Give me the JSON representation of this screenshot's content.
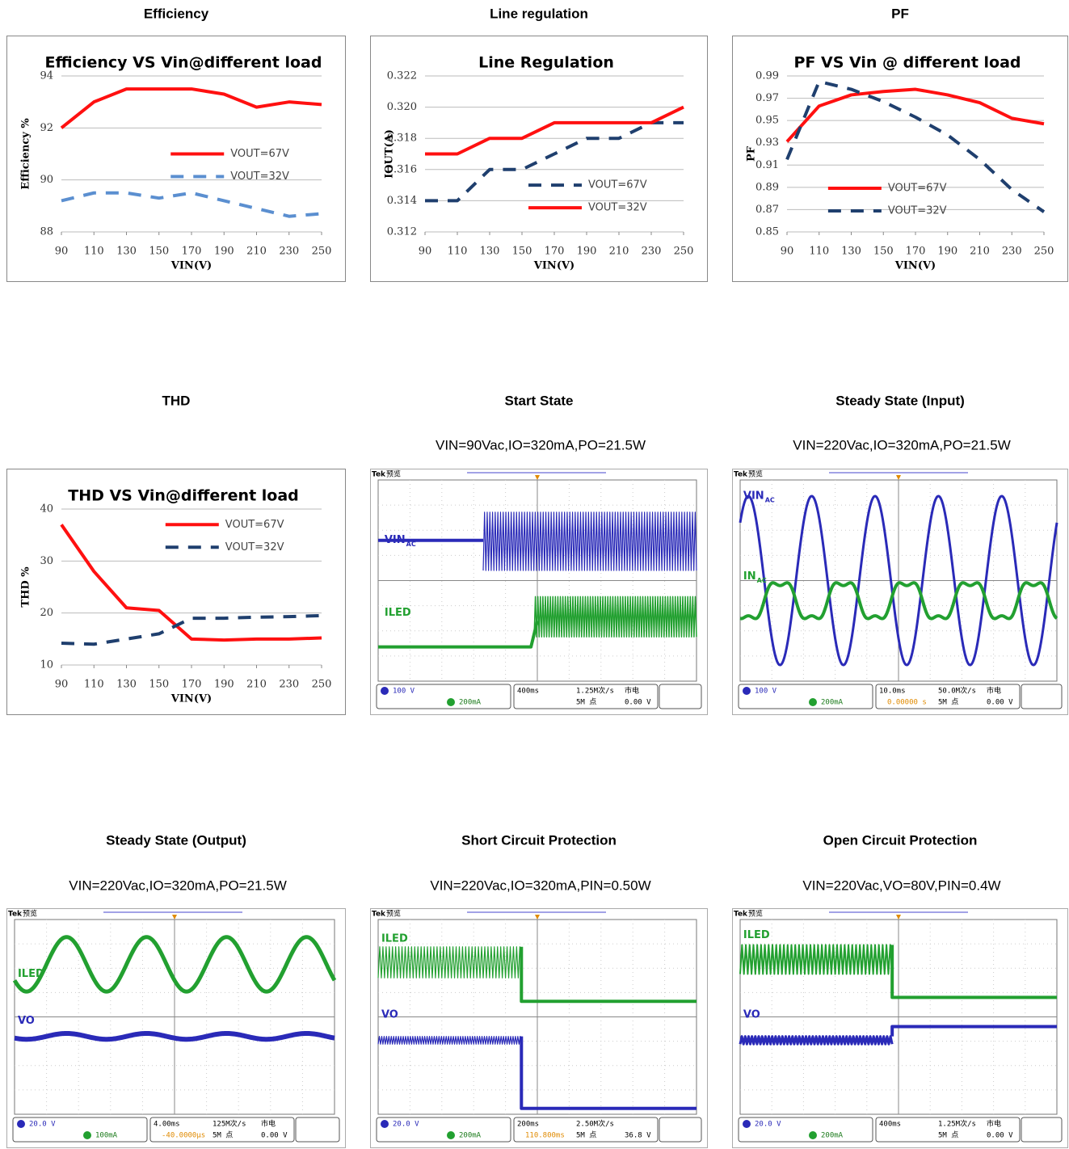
{
  "headings": [
    "Efficiency",
    "Line regulation",
    "PF",
    "THD",
    "Start State",
    "Steady State (Input)",
    "Steady State (Output)",
    "Short Circuit Protection",
    "Open Circuit Protection"
  ],
  "chart_data": [
    {
      "type": "line",
      "title": "Efficiency VS Vin@different load",
      "x_label": "VIN(V)",
      "y_label": "Efficiency %",
      "x": [
        90,
        110,
        130,
        150,
        170,
        190,
        210,
        230,
        250
      ],
      "xlim": [
        90,
        250
      ],
      "xticks": [
        90,
        110,
        130,
        150,
        170,
        190,
        210,
        230,
        250
      ],
      "ylim": [
        88,
        94
      ],
      "yticks": [
        88,
        90,
        92,
        94
      ],
      "grid": true,
      "legend": "right",
      "series": [
        {
          "name": "VOUT=67V",
          "color": "#ff1010",
          "line_style": "solid",
          "values": [
            92,
            93,
            93.5,
            93.5,
            93.5,
            93.3,
            92.8,
            93,
            92.9
          ]
        },
        {
          "name": "VOUT=32V",
          "color": "#5b8fd0",
          "line_style": "dashed",
          "values": [
            89.2,
            89.5,
            89.5,
            89.3,
            89.5,
            89.2,
            88.9,
            88.6,
            88.7
          ]
        }
      ]
    },
    {
      "type": "line",
      "title": "Line Regulation",
      "x_label": "VIN(V)",
      "y_label": "IOUT(A)",
      "x": [
        90,
        110,
        130,
        150,
        170,
        190,
        210,
        230,
        250
      ],
      "xlim": [
        90,
        250
      ],
      "xticks": [
        90,
        110,
        130,
        150,
        170,
        190,
        210,
        230,
        250
      ],
      "ylim": [
        0.312,
        0.322
      ],
      "yticks": [
        0.312,
        0.314,
        0.316,
        0.318,
        {
          "value": 0.32,
          "label": "0.320"
        },
        0.322
      ],
      "grid": true,
      "legend": "lower right",
      "series": [
        {
          "name": "VOUT=67V",
          "color": "#1f3f6e",
          "line_style": "dashed",
          "values": [
            0.314,
            0.314,
            0.316,
            0.316,
            0.317,
            0.318,
            0.318,
            0.319,
            0.319
          ]
        },
        {
          "name": "VOUT=32V",
          "color": "#ff1010",
          "line_style": "solid",
          "values": [
            0.317,
            0.317,
            0.318,
            0.318,
            0.319,
            0.319,
            0.319,
            0.319,
            0.32
          ]
        }
      ]
    },
    {
      "type": "line",
      "title": "PF VS Vin @ different load",
      "x_label": "VIN(V)",
      "y_label": "PF",
      "x": [
        90,
        110,
        130,
        150,
        170,
        190,
        210,
        230,
        250
      ],
      "xlim": [
        90,
        250
      ],
      "xticks": [
        90,
        110,
        130,
        150,
        170,
        190,
        210,
        230,
        250
      ],
      "ylim": [
        0.85,
        0.99
      ],
      "yticks": [
        0.85,
        0.87,
        0.89,
        0.91,
        0.93,
        0.95,
        0.97,
        0.99
      ],
      "grid": true,
      "legend": "lower center",
      "series": [
        {
          "name": "VOUT=67V",
          "color": "#ff1010",
          "line_style": "solid",
          "values": [
            0.931,
            0.963,
            0.973,
            0.976,
            0.978,
            0.973,
            0.966,
            0.952,
            0.947
          ]
        },
        {
          "name": "VOUT=32V",
          "color": "#1f3f6e",
          "line_style": "dashed",
          "values": [
            0.915,
            0.985,
            0.978,
            0.967,
            0.953,
            0.937,
            0.915,
            0.888,
            0.868
          ]
        }
      ]
    },
    {
      "type": "line",
      "title": "THD VS Vin@different load",
      "x_label": "VIN(V)",
      "y_label": "THD %",
      "x": [
        90,
        110,
        130,
        150,
        170,
        190,
        210,
        230,
        250
      ],
      "xlim": [
        90,
        250
      ],
      "xticks": [
        90,
        110,
        130,
        150,
        170,
        190,
        210,
        230,
        250
      ],
      "ylim": [
        10,
        40
      ],
      "yticks": [
        10,
        20,
        30,
        40
      ],
      "grid": true,
      "legend": "upper right",
      "series": [
        {
          "name": "VOUT=67V",
          "color": "#ff1010",
          "line_style": "solid",
          "values": [
            37,
            28,
            21,
            20.5,
            15,
            14.8,
            15,
            15,
            15.2
          ]
        },
        {
          "name": "VOUT=32V",
          "color": "#1f3f6e",
          "line_style": "dashed",
          "values": [
            14.2,
            14,
            15,
            16,
            19,
            19,
            19.2,
            19.3,
            19.5
          ]
        }
      ]
    }
  ],
  "scopes": [
    {
      "subtitle": "VIN=90Vac,IO=320mA,PO=21.5W",
      "brand": "Tek",
      "mode": "预览",
      "channels": [
        {
          "label": "VIN",
          "sub": "AC",
          "color": "#2a2ab8"
        },
        {
          "label": "ILED",
          "color": "#22a030"
        }
      ],
      "status": {
        "ch1": "100 V",
        "ch4": "200mA",
        "time": "400ms",
        "rate": "1.25M次/s",
        "points": "5M 点",
        "trigger": "市电",
        "level": "0.00 V"
      }
    },
    {
      "subtitle": "VIN=220Vac,IO=320mA,PO=21.5W",
      "brand": "Tek",
      "mode": "预览",
      "channels": [
        {
          "label": "VIN",
          "sub": "AC",
          "color": "#2a2ab8"
        },
        {
          "label": "IN",
          "sub": "AC",
          "color": "#22a030"
        }
      ],
      "status": {
        "ch1": "100 V",
        "ch4": "200mA",
        "time": "10.0ms",
        "offset": "0.00000 s",
        "rate": "50.0M次/s",
        "points": "5M 点",
        "trigger": "市电",
        "level": "0.00 V"
      }
    },
    {
      "subtitle": "VIN=220Vac,IO=320mA,PO=21.5W",
      "brand": "Tek",
      "mode": "预览",
      "channels": [
        {
          "label": "ILED",
          "color": "#22a030"
        },
        {
          "label": "VO",
          "color": "#2a2ab8"
        }
      ],
      "status": {
        "ch1": "20.0 V",
        "ch4": "100mA",
        "time": "4.00ms",
        "offset": "-40.0000µs",
        "rate": "125M次/s",
        "points": "5M 点",
        "trigger": "市电",
        "level": "0.00 V"
      }
    },
    {
      "subtitle": "VIN=220Vac,IO=320mA,PIN=0.50W",
      "brand": "Tek",
      "mode": "预览",
      "channels": [
        {
          "label": "ILED",
          "color": "#22a030"
        },
        {
          "label": "VO",
          "color": "#2a2ab8"
        }
      ],
      "status": {
        "ch1": "20.0 V",
        "ch4": "200mA",
        "time": "200ms",
        "offset": "110.800ms",
        "rate": "2.50M次/s",
        "points": "5M 点",
        "level": "36.8 V"
      }
    },
    {
      "subtitle": "VIN=220Vac,VO=80V,PIN=0.4W",
      "brand": "Tek",
      "mode": "预览",
      "channels": [
        {
          "label": "ILED",
          "color": "#22a030"
        },
        {
          "label": "VO",
          "color": "#2a2ab8"
        }
      ],
      "status": {
        "ch1": "20.0 V",
        "ch4": "200mA",
        "time": "400ms",
        "rate": "1.25M次/s",
        "points": "5M 点",
        "trigger": "市电",
        "level": "0.00 V"
      }
    }
  ]
}
